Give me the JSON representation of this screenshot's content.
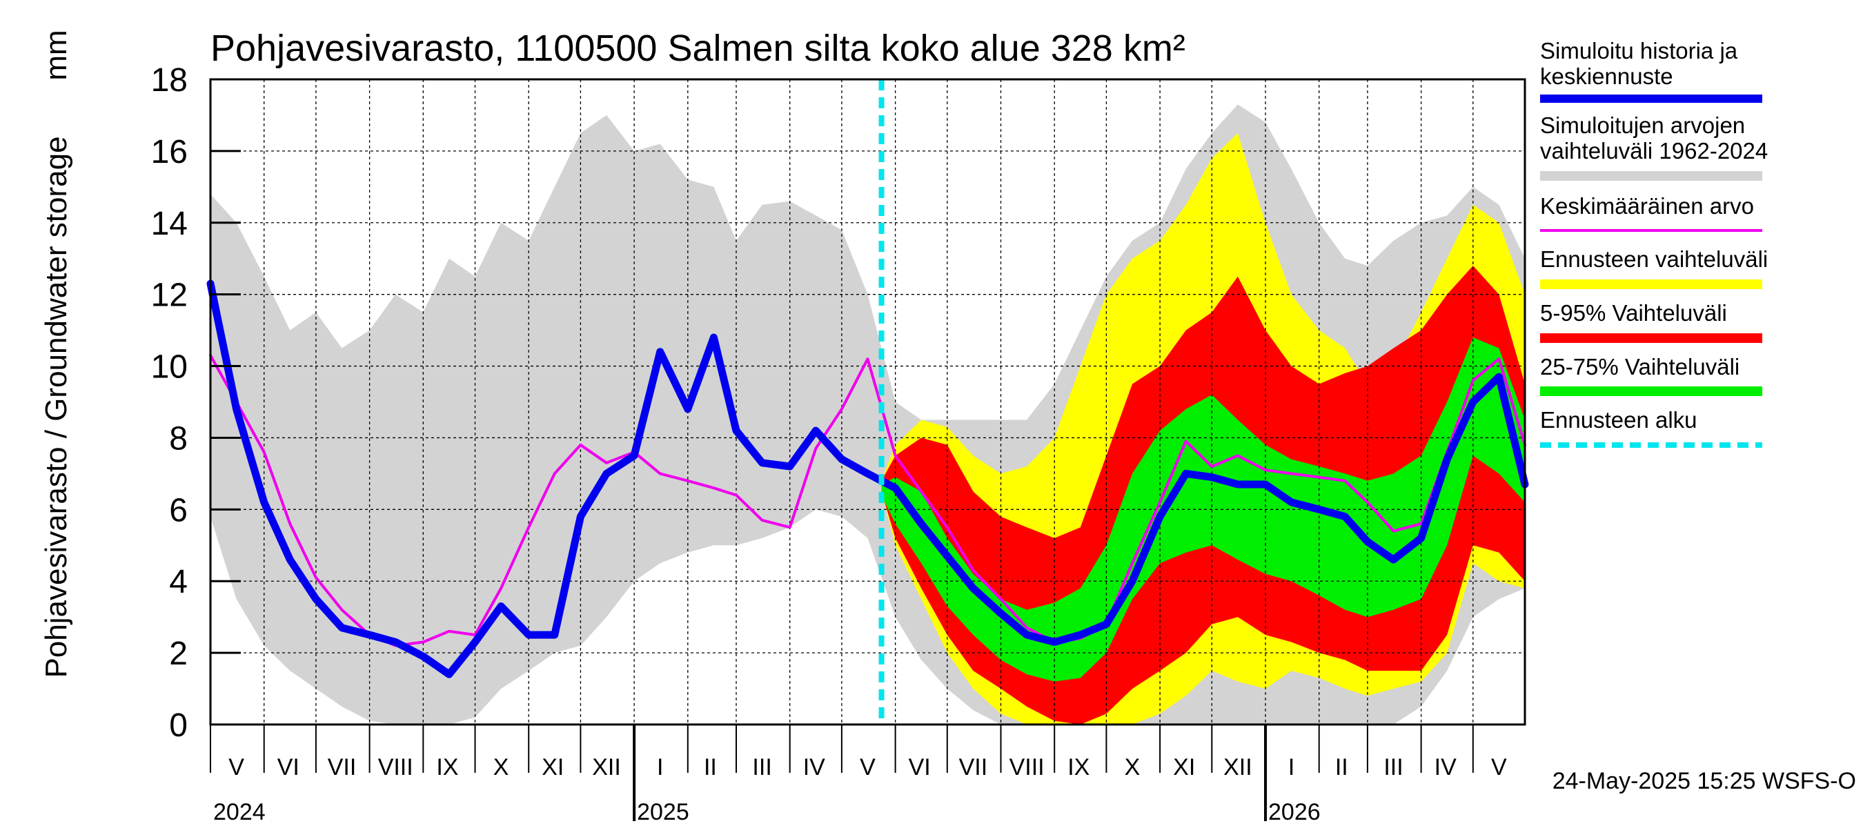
{
  "chart_data": {
    "type": "area",
    "title": "Pohjavesivarasto, 1100500 Salmen silta koko alue 328 km²",
    "ylabel": "Pohjavesivarasto / Groundwater storage",
    "yunit": "mm",
    "ylim": [
      0,
      18
    ],
    "yticks": [
      "0",
      "2",
      "4",
      "6",
      "8",
      "10",
      "12",
      "14",
      "16",
      "18"
    ],
    "xlim": [
      "2024-05-01",
      "2026-05-31"
    ],
    "grid": true,
    "month_labels": [
      {
        "date": "2024-05-16",
        "label": "V"
      },
      {
        "date": "2024-06-15",
        "label": "VI"
      },
      {
        "date": "2024-07-16",
        "label": "VII"
      },
      {
        "date": "2024-08-16",
        "label": "VIII"
      },
      {
        "date": "2024-09-15",
        "label": "IX"
      },
      {
        "date": "2024-10-16",
        "label": "X"
      },
      {
        "date": "2024-11-15",
        "label": "XI"
      },
      {
        "date": "2024-12-16",
        "label": "XII"
      },
      {
        "date": "2025-01-16",
        "label": "I"
      },
      {
        "date": "2025-02-14",
        "label": "II"
      },
      {
        "date": "2025-03-16",
        "label": "III"
      },
      {
        "date": "2025-04-15",
        "label": "IV"
      },
      {
        "date": "2025-05-16",
        "label": "V"
      },
      {
        "date": "2025-06-15",
        "label": "VI"
      },
      {
        "date": "2025-07-16",
        "label": "VII"
      },
      {
        "date": "2025-08-16",
        "label": "VIII"
      },
      {
        "date": "2025-09-15",
        "label": "IX"
      },
      {
        "date": "2025-10-16",
        "label": "X"
      },
      {
        "date": "2025-11-15",
        "label": "XI"
      },
      {
        "date": "2025-12-16",
        "label": "XII"
      },
      {
        "date": "2026-01-16",
        "label": "I"
      },
      {
        "date": "2026-02-14",
        "label": "II"
      },
      {
        "date": "2026-03-16",
        "label": "III"
      },
      {
        "date": "2026-04-15",
        "label": "IV"
      },
      {
        "date": "2026-05-16",
        "label": "V"
      }
    ],
    "year_labels": [
      {
        "date": "2024-05-01",
        "label": "2024"
      },
      {
        "date": "2025-01-01",
        "label": "2025"
      },
      {
        "date": "2026-01-01",
        "label": "2026"
      }
    ],
    "forecast_start": "2025-05-24",
    "legend_position": "right",
    "legend": [
      {
        "label": "Simuloitu historia ja keskiennuste",
        "color": "#0000ee"
      },
      {
        "label": "Simuloitujen arvojen vaihteluväli 1962-2024",
        "color": "#d3d3d3"
      },
      {
        "label": "Keskimääräinen arvo",
        "color": "#ee00ee"
      },
      {
        "label": "Ennusteen vaihteluväli",
        "color": "#ffff00"
      },
      {
        "label": "5-95% Vaihteluväli",
        "color": "#ff0000"
      },
      {
        "label": "25-75% Vaihteluväli",
        "color": "#00ee00"
      },
      {
        "label": "Ennusteen alku",
        "color": "#00e5ee"
      }
    ],
    "series": [
      {
        "name": "Simuloitujen arvojen vaihteluväli 1962-2024",
        "kind": "band",
        "color": "#d3d3d3",
        "x": [
          "2024-05-01",
          "2024-05-16",
          "2024-06-01",
          "2024-06-16",
          "2024-07-01",
          "2024-07-16",
          "2024-08-01",
          "2024-08-16",
          "2024-09-01",
          "2024-09-16",
          "2024-10-01",
          "2024-10-16",
          "2024-11-01",
          "2024-11-16",
          "2024-12-01",
          "2024-12-16",
          "2025-01-01",
          "2025-01-16",
          "2025-02-01",
          "2025-02-16",
          "2025-03-01",
          "2025-03-16",
          "2025-04-01",
          "2025-04-16",
          "2025-05-01",
          "2025-05-16",
          "2025-06-01",
          "2025-06-16",
          "2025-07-01",
          "2025-07-16",
          "2025-08-01",
          "2025-08-16",
          "2025-09-01",
          "2025-09-16",
          "2025-10-01",
          "2025-10-16",
          "2025-11-01",
          "2025-11-16",
          "2025-12-01",
          "2025-12-16",
          "2026-01-01",
          "2026-01-16",
          "2026-02-01",
          "2026-02-16",
          "2026-03-01",
          "2026-03-16",
          "2026-04-01",
          "2026-04-16",
          "2026-05-01",
          "2026-05-16",
          "2026-05-31"
        ],
        "upper": [
          14.8,
          14.0,
          12.5,
          11.0,
          11.5,
          10.5,
          11.0,
          12.0,
          11.5,
          13.0,
          12.5,
          14.0,
          13.5,
          15.0,
          16.5,
          17.0,
          16.0,
          16.2,
          15.2,
          15.0,
          13.5,
          14.5,
          14.6,
          14.2,
          13.8,
          12.0,
          9.0,
          8.5,
          8.5,
          8.5,
          8.5,
          8.5,
          9.5,
          11.0,
          12.5,
          13.5,
          14.0,
          15.5,
          16.5,
          17.3,
          16.8,
          15.5,
          14.0,
          13.0,
          12.8,
          13.5,
          14.0,
          14.2,
          15.0,
          14.5,
          13.0
        ],
        "lower": [
          5.8,
          3.5,
          2.2,
          1.5,
          1.0,
          0.5,
          0.1,
          0.0,
          0.0,
          0.0,
          0.2,
          1.0,
          1.5,
          2.0,
          2.2,
          3.0,
          4.0,
          4.5,
          4.8,
          5.0,
          5.0,
          5.2,
          5.5,
          6.0,
          5.8,
          5.2,
          3.0,
          1.8,
          1.0,
          0.4,
          0.0,
          0.0,
          0.0,
          0.0,
          0.0,
          0.0,
          0.0,
          0.0,
          0.0,
          0.0,
          0.0,
          0.0,
          0.0,
          0.0,
          0.0,
          0.0,
          0.5,
          1.5,
          3.0,
          3.5,
          3.8
        ]
      },
      {
        "name": "Ennusteen vaihteluväli",
        "kind": "band",
        "color": "#ffff00",
        "x": [
          "2025-05-24",
          "2025-06-01",
          "2025-06-16",
          "2025-07-01",
          "2025-07-16",
          "2025-08-01",
          "2025-08-16",
          "2025-09-01",
          "2025-09-16",
          "2025-10-01",
          "2025-10-16",
          "2025-11-01",
          "2025-11-16",
          "2025-12-01",
          "2025-12-16",
          "2026-01-01",
          "2026-01-16",
          "2026-02-01",
          "2026-02-16",
          "2026-03-01",
          "2026-03-16",
          "2026-04-01",
          "2026-04-16",
          "2026-05-01",
          "2026-05-16",
          "2026-05-31"
        ],
        "upper": [
          6.8,
          7.8,
          8.5,
          8.3,
          7.5,
          7.0,
          7.2,
          8.0,
          10.0,
          12.0,
          13.0,
          13.5,
          14.5,
          15.8,
          16.5,
          14.0,
          12.0,
          11.0,
          10.5,
          9.5,
          10.0,
          11.5,
          13.0,
          14.5,
          14.0,
          12.0
        ],
        "lower": [
          6.5,
          5.0,
          3.5,
          2.0,
          1.0,
          0.3,
          0.0,
          0.0,
          0.0,
          0.0,
          0.0,
          0.3,
          0.8,
          1.5,
          1.2,
          1.0,
          1.5,
          1.3,
          1.0,
          0.8,
          1.0,
          1.2,
          2.0,
          4.5,
          4.0,
          3.8
        ]
      },
      {
        "name": "5-95% Vaihteluväli",
        "kind": "band",
        "color": "#ff0000",
        "x": [
          "2025-05-24",
          "2025-06-01",
          "2025-06-16",
          "2025-07-01",
          "2025-07-16",
          "2025-08-01",
          "2025-08-16",
          "2025-09-01",
          "2025-09-16",
          "2025-10-01",
          "2025-10-16",
          "2025-11-01",
          "2025-11-16",
          "2025-12-01",
          "2025-12-16",
          "2026-01-01",
          "2026-01-16",
          "2026-02-01",
          "2026-02-16",
          "2026-03-01",
          "2026-03-16",
          "2026-04-01",
          "2026-04-16",
          "2026-05-01",
          "2026-05-16",
          "2026-05-31"
        ],
        "upper": [
          6.8,
          7.5,
          8.0,
          7.8,
          6.5,
          5.8,
          5.5,
          5.2,
          5.5,
          7.5,
          9.5,
          10.0,
          11.0,
          11.5,
          12.5,
          11.0,
          10.0,
          9.5,
          9.8,
          10.0,
          10.5,
          11.0,
          12.0,
          12.8,
          12.0,
          9.5
        ],
        "lower": [
          6.5,
          5.2,
          3.8,
          2.5,
          1.5,
          1.0,
          0.5,
          0.1,
          0.0,
          0.3,
          1.0,
          1.5,
          2.0,
          2.8,
          3.0,
          2.5,
          2.3,
          2.0,
          1.8,
          1.5,
          1.5,
          1.5,
          2.5,
          5.0,
          4.8,
          4.0
        ]
      },
      {
        "name": "25-75% Vaihteluväli",
        "kind": "band",
        "color": "#00ee00",
        "x": [
          "2025-05-24",
          "2025-06-01",
          "2025-06-16",
          "2025-07-01",
          "2025-07-16",
          "2025-08-01",
          "2025-08-16",
          "2025-09-01",
          "2025-09-16",
          "2025-10-01",
          "2025-10-16",
          "2025-11-01",
          "2025-11-16",
          "2025-12-01",
          "2025-12-16",
          "2026-01-01",
          "2026-01-16",
          "2026-02-01",
          "2026-02-16",
          "2026-03-01",
          "2026-03-16",
          "2026-04-01",
          "2026-04-16",
          "2026-05-01",
          "2026-05-16",
          "2026-05-31"
        ],
        "upper": [
          6.7,
          6.9,
          6.5,
          5.2,
          4.2,
          3.5,
          3.2,
          3.4,
          3.8,
          5.0,
          7.0,
          8.2,
          8.8,
          9.2,
          8.5,
          7.8,
          7.4,
          7.2,
          7.0,
          6.8,
          7.0,
          7.5,
          9.0,
          10.8,
          10.5,
          8.5
        ],
        "lower": [
          6.4,
          5.6,
          4.5,
          3.3,
          2.5,
          1.8,
          1.4,
          1.2,
          1.3,
          2.0,
          3.5,
          4.5,
          4.8,
          5.0,
          4.6,
          4.2,
          4.0,
          3.6,
          3.2,
          3.0,
          3.2,
          3.5,
          5.0,
          7.5,
          7.0,
          6.2
        ]
      },
      {
        "name": "Keskimääräinen arvo",
        "kind": "line",
        "color": "#ee00ee",
        "x": [
          "2024-05-01",
          "2024-05-16",
          "2024-06-01",
          "2024-06-16",
          "2024-07-01",
          "2024-07-16",
          "2024-08-01",
          "2024-08-16",
          "2024-09-01",
          "2024-09-16",
          "2024-10-01",
          "2024-10-16",
          "2024-11-01",
          "2024-11-16",
          "2024-12-01",
          "2024-12-16",
          "2025-01-01",
          "2025-01-16",
          "2025-02-01",
          "2025-02-16",
          "2025-03-01",
          "2025-03-16",
          "2025-04-01",
          "2025-04-16",
          "2025-05-01",
          "2025-05-16",
          "2025-06-01",
          "2025-06-16",
          "2025-07-01",
          "2025-07-16",
          "2025-08-01",
          "2025-08-16",
          "2025-09-01",
          "2025-09-16",
          "2025-10-01",
          "2025-10-16",
          "2025-11-01",
          "2025-11-16",
          "2025-12-01",
          "2025-12-16",
          "2026-01-01",
          "2026-01-16",
          "2026-02-01",
          "2026-02-16",
          "2026-03-01",
          "2026-03-16",
          "2026-04-01",
          "2026-04-16",
          "2026-05-01",
          "2026-05-16",
          "2026-05-31"
        ],
        "y": [
          10.3,
          9.0,
          7.6,
          5.6,
          4.1,
          3.2,
          2.5,
          2.2,
          2.3,
          2.6,
          2.5,
          3.8,
          5.5,
          7.0,
          7.8,
          7.3,
          7.6,
          7.0,
          6.8,
          6.6,
          6.4,
          5.7,
          5.5,
          7.7,
          8.8,
          10.2,
          7.5,
          6.5,
          5.5,
          4.3,
          3.5,
          2.7,
          2.3,
          2.4,
          2.8,
          4.5,
          6.2,
          7.9,
          7.2,
          7.5,
          7.1,
          7.0,
          6.9,
          6.8,
          6.2,
          5.4,
          5.6,
          7.6,
          9.6,
          10.2,
          7.8
        ]
      },
      {
        "name": "Simuloitu historia ja keskiennuste",
        "kind": "line",
        "color": "#0000ee",
        "x": [
          "2024-05-01",
          "2024-05-16",
          "2024-06-01",
          "2024-06-16",
          "2024-07-01",
          "2024-07-16",
          "2024-08-01",
          "2024-08-16",
          "2024-09-01",
          "2024-09-16",
          "2024-10-01",
          "2024-10-16",
          "2024-11-01",
          "2024-11-16",
          "2024-12-01",
          "2024-12-16",
          "2025-01-01",
          "2025-01-16",
          "2025-02-01",
          "2025-02-16",
          "2025-03-01",
          "2025-03-16",
          "2025-04-01",
          "2025-04-16",
          "2025-05-01",
          "2025-05-16",
          "2025-06-01",
          "2025-06-16",
          "2025-07-01",
          "2025-07-16",
          "2025-08-01",
          "2025-08-16",
          "2025-09-01",
          "2025-09-16",
          "2025-10-01",
          "2025-10-16",
          "2025-11-01",
          "2025-11-16",
          "2025-12-01",
          "2025-12-16",
          "2026-01-01",
          "2026-01-16",
          "2026-02-01",
          "2026-02-16",
          "2026-03-01",
          "2026-03-16",
          "2026-04-01",
          "2026-04-16",
          "2026-05-01",
          "2026-05-16",
          "2026-05-31"
        ],
        "y": [
          12.3,
          8.8,
          6.2,
          4.6,
          3.5,
          2.7,
          2.5,
          2.3,
          1.9,
          1.4,
          2.3,
          3.3,
          2.5,
          2.5,
          5.8,
          7.0,
          7.5,
          10.4,
          8.8,
          10.8,
          8.2,
          7.3,
          7.2,
          8.2,
          7.4,
          7.0,
          6.6,
          5.6,
          4.7,
          3.8,
          3.1,
          2.5,
          2.3,
          2.5,
          2.8,
          4.0,
          5.8,
          7.0,
          6.9,
          6.7,
          6.7,
          6.2,
          6.0,
          5.8,
          5.1,
          4.6,
          5.2,
          7.4,
          9.0,
          9.7,
          6.7
        ]
      }
    ],
    "footer": "24-May-2025 15:25 WSFS-O"
  }
}
